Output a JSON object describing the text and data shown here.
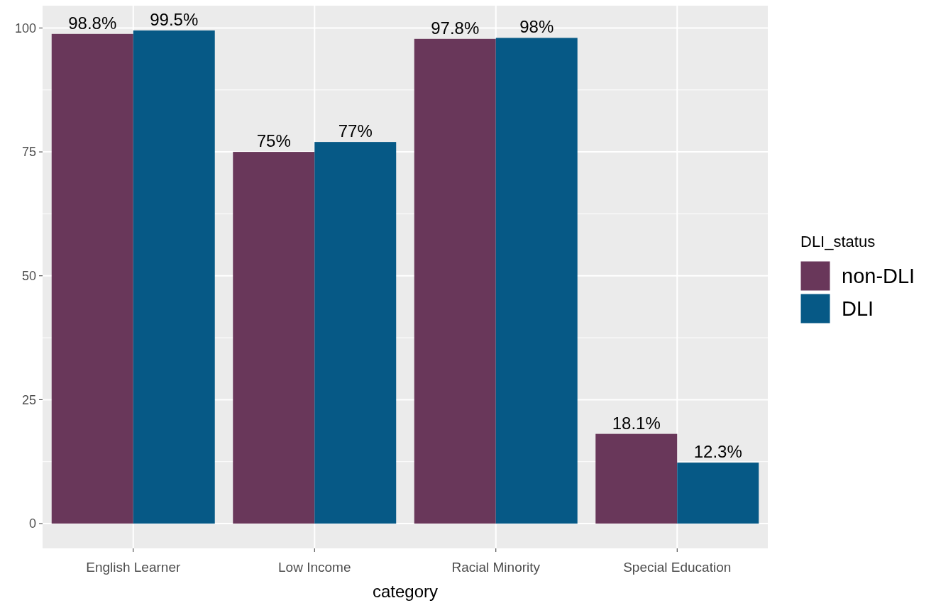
{
  "chart_data": {
    "type": "bar",
    "xlabel": "category",
    "legend_title": "DLI_status",
    "categories": [
      "English Learner",
      "Low Income",
      "Racial Minority",
      "Special Education"
    ],
    "series": [
      {
        "name": "non-DLI",
        "color": "#69375a",
        "values": [
          98.8,
          75,
          97.8,
          18.1
        ],
        "value_labels": [
          "98.8%",
          "75%",
          "97.8%",
          "18.1%"
        ]
      },
      {
        "name": "DLI",
        "color": "#065986",
        "values": [
          99.5,
          77,
          98,
          12.3
        ],
        "value_labels": [
          "99.5%",
          "77%",
          "98%",
          "12.3%"
        ]
      }
    ],
    "ylim": [
      -5,
      104.5
    ],
    "yticks": [
      0,
      25,
      50,
      75,
      100
    ],
    "grid": true,
    "legend": "right"
  }
}
